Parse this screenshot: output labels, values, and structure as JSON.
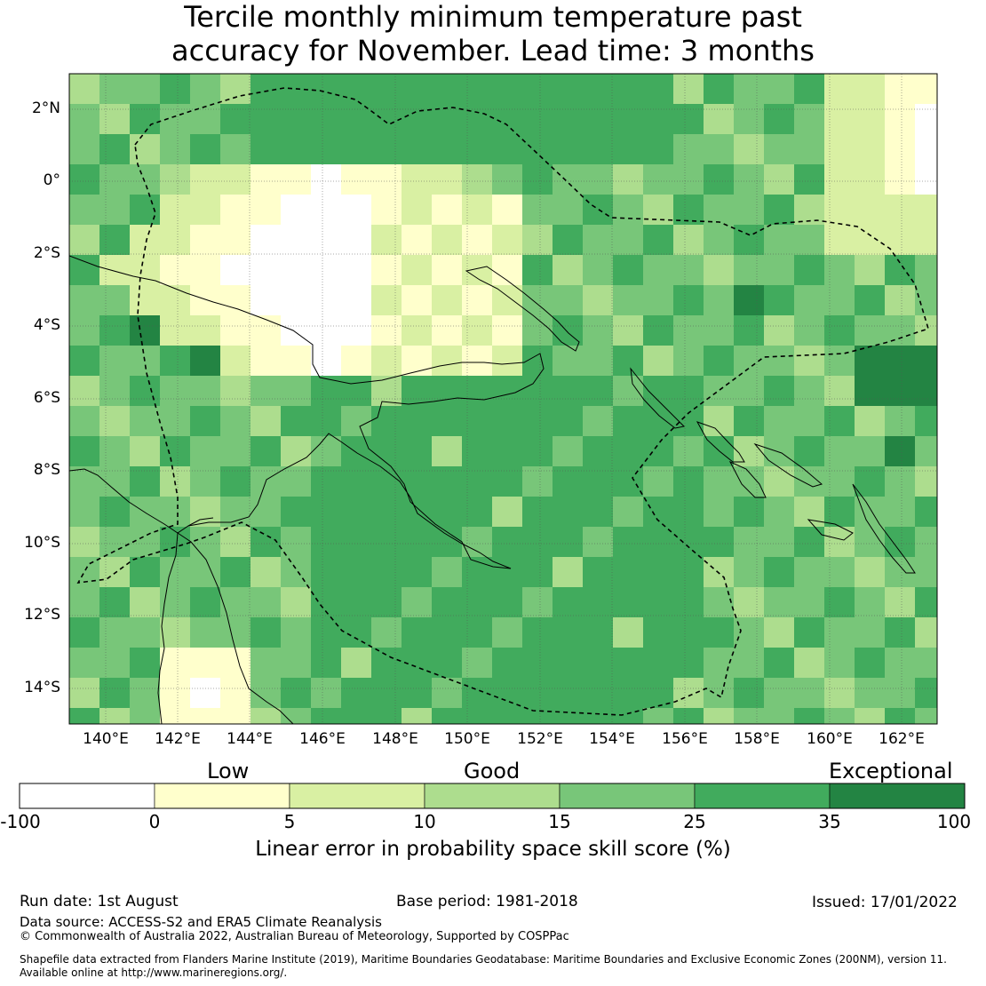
{
  "title": {
    "line1": "Tercile monthly minimum temperature past",
    "line2": "accuracy for November. Lead time: 3 months"
  },
  "axes": {
    "lat_labels": [
      "2°N",
      "0°",
      "2°S",
      "4°S",
      "6°S",
      "8°S",
      "10°S",
      "12°S",
      "14°S"
    ],
    "lon_labels": [
      "140°E",
      "142°E",
      "144°E",
      "146°E",
      "148°E",
      "150°E",
      "152°E",
      "154°E",
      "156°E",
      "158°E",
      "160°E",
      "162°E"
    ]
  },
  "legend": {
    "categories": [
      "Low",
      "Good",
      "Exceptional"
    ],
    "ticks": [
      "-100",
      "0",
      "5",
      "10",
      "15",
      "25",
      "35",
      "100"
    ],
    "colors": [
      "#ffffff",
      "#ffffcc",
      "#d9f0a3",
      "#addd8e",
      "#78c679",
      "#41ab5d",
      "#238443"
    ],
    "caption": "Linear error in probability space skill score (%)"
  },
  "footer": {
    "run_date": "Run date: 1st August",
    "base_period": "Base period: 1981-2018",
    "issued": "Issued: 17/01/2022",
    "data_source": "Data source: ACCESS-S2 and ERA5 Climate Reanalysis",
    "copyright": "© Commonwealth of Australia 2022, Australian Bureau of Meteorology, Supported by COSPPac",
    "shapefile_line1": "Shapefile data extracted from Flanders Marine Institute (2019), Maritime Boundaries Geodatabase: Maritime Boundaries and Exclusive Economic Zones (200NM), version 11.",
    "shapefile_line2": "Available online at http://www.marineregions.org/."
  }
}
